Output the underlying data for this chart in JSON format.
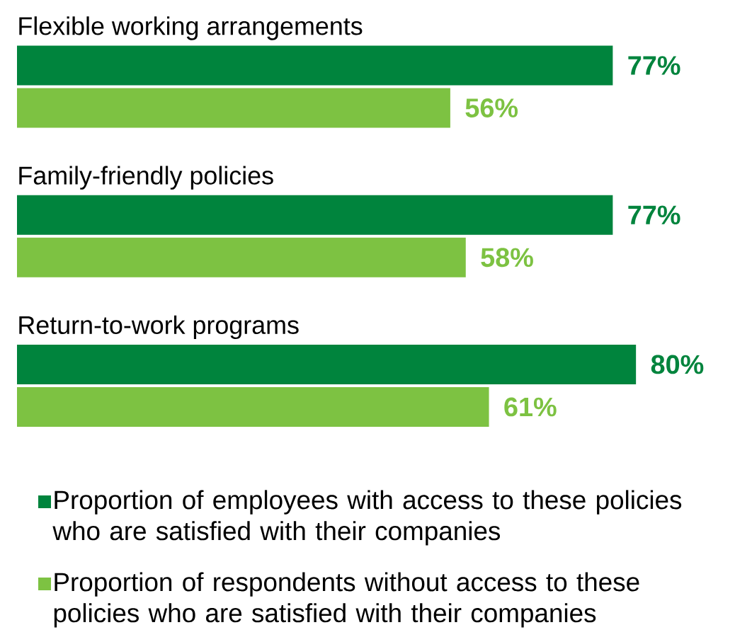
{
  "chart_data": {
    "type": "bar",
    "orientation": "horizontal",
    "categories": [
      "Flexible working arrangements",
      "Family-friendly policies",
      "Return-to-work programs"
    ],
    "series": [
      {
        "name": "Proportion of employees with access to these policies who are satisfied with their companies",
        "color": "#00843d",
        "values": [
          77,
          77,
          80
        ],
        "value_labels": [
          "77%",
          "77%",
          "80%"
        ]
      },
      {
        "name": "Proportion of respondents without access to these policies who are satisfied with their companies",
        "color": "#7dc242",
        "values": [
          56,
          58,
          61
        ],
        "value_labels": [
          "56%",
          "58%",
          "61%"
        ]
      }
    ],
    "legend": "bottom"
  }
}
